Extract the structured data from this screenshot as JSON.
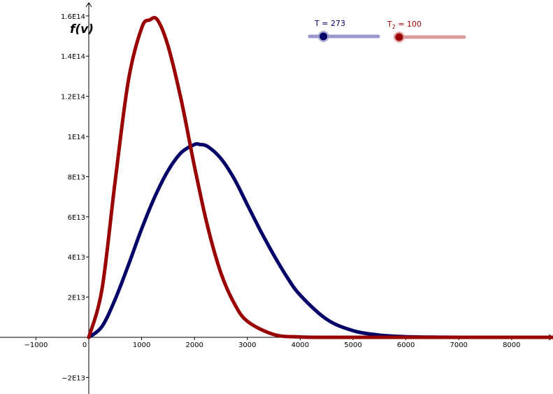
{
  "chart_data": {
    "type": "line",
    "ylabel": "f(v)",
    "xlim": [
      -1700,
      8800
    ],
    "ylim": [
      -28000000000000.0,
      165000000000000.0
    ],
    "x_ticks": [
      -1000,
      0,
      1000,
      2000,
      3000,
      4000,
      5000,
      6000,
      7000,
      8000
    ],
    "x_tick_labels": [
      "−1000",
      "0",
      "1000",
      "2000",
      "3000",
      "4000",
      "5000",
      "6000",
      "7000",
      "8000"
    ],
    "y_ticks": [
      -20000000000000.0,
      20000000000000.0,
      40000000000000.0,
      60000000000000.0,
      80000000000000.0,
      100000000000000.0,
      120000000000000.0,
      140000000000000.0,
      160000000000000.0
    ],
    "y_tick_labels": [
      "−2E13",
      "2E13",
      "4E13",
      "6E13",
      "8E13",
      "1E14",
      "1.2E14",
      "1.4E14",
      "1.6E14"
    ],
    "series": [
      {
        "name": "T",
        "color": "#000066",
        "x": [
          0,
          250,
          500,
          750,
          1000,
          1250,
          1500,
          1750,
          2000,
          2100,
          2250,
          2500,
          2750,
          3000,
          3250,
          3500,
          3750,
          4000,
          4500,
          5000,
          5500,
          6000,
          6500,
          7000,
          8000,
          8800
        ],
        "y": [
          0,
          5400000000000.0,
          19000000000000.0,
          36000000000000.0,
          54000000000000.0,
          70000000000000.0,
          83000000000000.0,
          92000000000000.0,
          96000000000000.0,
          96000000000000.0,
          95000000000000.0,
          89000000000000.0,
          79000000000000.0,
          66000000000000.0,
          53000000000000.0,
          41000000000000.0,
          30000000000000.0,
          21000000000000.0,
          9000000000000.0,
          3300000000000.0,
          1100000000000.0,
          300000000000.0,
          80000000000.0,
          20000000000.0,
          0,
          0
        ]
      },
      {
        "name": "T2",
        "color": "#990000",
        "x": [
          0,
          250,
          500,
          750,
          1000,
          1150,
          1300,
          1500,
          1750,
          2000,
          2250,
          2500,
          2750,
          3000,
          3500,
          4000,
          4500,
          5000,
          6000,
          7000,
          8800
        ],
        "y": [
          0,
          24000000000000.0,
          78000000000000.0,
          128000000000000.0,
          154000000000000.0,
          158000000000000.0,
          158000000000000.0,
          145000000000000.0,
          118000000000000.0,
          85000000000000.0,
          55000000000000.0,
          32000000000000.0,
          17000000000000.0,
          8000000000000.0,
          1400000000000.0,
          180000000000.0,
          15000000000.0,
          0,
          0,
          0,
          0
        ]
      }
    ]
  },
  "sliders": [
    {
      "name": "T",
      "label": "T = 273",
      "label_main": "T",
      "label_sub": "",
      "label_rest": " = 273",
      "value": 273,
      "fraction": 0.2,
      "color": "#000066",
      "track_color": "#9999cc"
    },
    {
      "name": "T2",
      "label": "T2 = 100",
      "label_main": "T",
      "label_sub": "2",
      "label_rest": " = 100",
      "value": 100,
      "fraction": 0.05,
      "color": "#990000",
      "track_color": "#d99999"
    }
  ]
}
